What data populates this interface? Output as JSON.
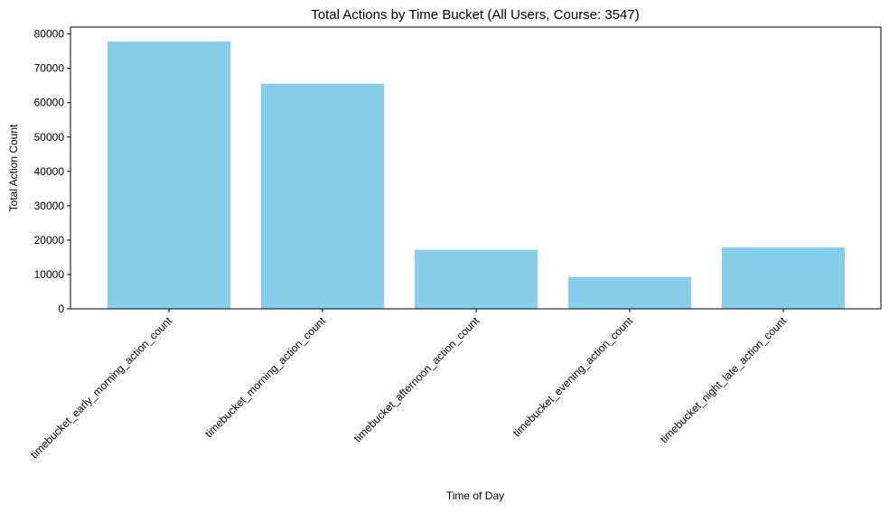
{
  "chart_data": {
    "type": "bar",
    "title": "Total Actions by Time Bucket (All Users, Course: 3547)",
    "xlabel": "Time of Day",
    "ylabel": "Total Action Count",
    "categories": [
      "timebucket_early_morning_action_count",
      "timebucket_morning_action_count",
      "timebucket_afternoon_action_count",
      "timebucket_evening_action_count",
      "timebucket_night_late_action_count"
    ],
    "values": [
      77800,
      65500,
      17200,
      9300,
      17900
    ],
    "ylim": [
      0,
      82000
    ],
    "yticks": [
      "0",
      "10000",
      "20000",
      "30000",
      "40000",
      "50000",
      "60000",
      "70000",
      "80000"
    ],
    "grid": false,
    "legend": "none",
    "bar_color": "#87CEEB"
  }
}
